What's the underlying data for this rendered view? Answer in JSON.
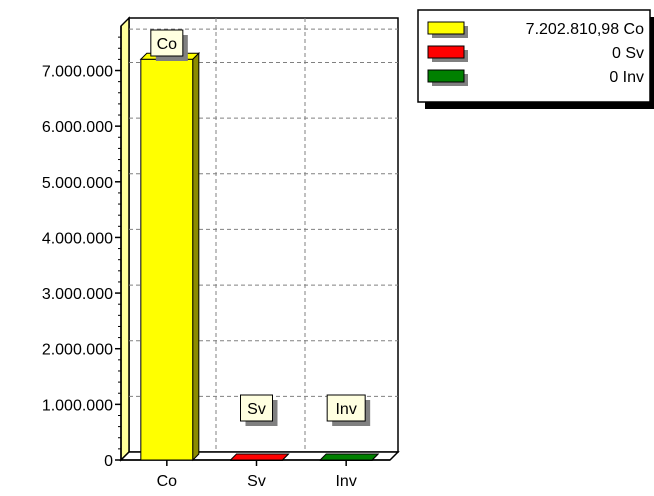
{
  "chart_data": {
    "type": "bar",
    "categories": [
      "Co",
      "Sv",
      "Inv"
    ],
    "values": [
      7202810.98,
      0,
      0
    ],
    "colors": [
      "#ffff00",
      "#ff0000",
      "#008000"
    ],
    "side_colors": [
      "#8c8c00",
      "#8c0000",
      "#004400"
    ],
    "ylim": [
      0,
      7800000
    ],
    "y_ticks": [
      {
        "value": 0,
        "label": "0"
      },
      {
        "value": 1000000,
        "label": "1.000.000"
      },
      {
        "value": 2000000,
        "label": "2.000.000"
      },
      {
        "value": 3000000,
        "label": "3.000.000"
      },
      {
        "value": 4000000,
        "label": "4.000.000"
      },
      {
        "value": 5000000,
        "label": "5.000.000"
      },
      {
        "value": 6000000,
        "label": "6.000.000"
      },
      {
        "value": 7000000,
        "label": "7.000.000"
      }
    ],
    "grid": true,
    "data_labels": [
      "Co",
      "Sv",
      "Inv"
    ],
    "legend": {
      "position": "top-right",
      "entries": [
        {
          "label": "7.202.810,98 Co",
          "color": "#ffff00"
        },
        {
          "label": "0 Sv",
          "color": "#ff0000"
        },
        {
          "label": "0 Inv",
          "color": "#008000"
        }
      ]
    }
  }
}
